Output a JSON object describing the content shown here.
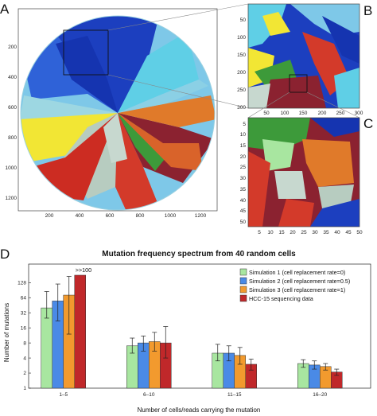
{
  "panels": {
    "A": {
      "letter": "A",
      "x_ticks": [
        "200",
        "400",
        "600",
        "800",
        "1000",
        "1200"
      ],
      "y_ticks": [
        "200",
        "400",
        "600",
        "800",
        "1000",
        "1200"
      ],
      "x_range": [
        0,
        1300
      ],
      "y_range": [
        0,
        1300
      ]
    },
    "B": {
      "letter": "B",
      "x_ticks": [
        "50",
        "100",
        "150",
        "200",
        "250",
        "300"
      ],
      "y_ticks": [
        "50",
        "100",
        "150",
        "200",
        "250",
        "300"
      ]
    },
    "C": {
      "letter": "C",
      "x_ticks": [
        "5",
        "10",
        "15",
        "20",
        "25",
        "30",
        "35",
        "40",
        "45",
        "50"
      ],
      "y_ticks": [
        "5",
        "10",
        "15",
        "20",
        "25",
        "30",
        "35",
        "40",
        "45",
        "50"
      ]
    },
    "D": {
      "letter": "D"
    }
  },
  "colors": {
    "sim1": "#a8e6a0",
    "sim2": "#4a8ae6",
    "sim3": "#f29a2e",
    "hcc": "#c0282a"
  },
  "chart_data": {
    "type": "bar",
    "title": "Mutation frequency spectrum from 40 random cells",
    "xlabel": "Number of cells/reads carrying the mutation",
    "ylabel": "Number of mutations",
    "y_scale": "log2",
    "y_ticks": [
      "1",
      "2",
      "4",
      "8",
      "16",
      "32",
      "64",
      "128"
    ],
    "ylim": [
      1,
      300
    ],
    "categories": [
      "1–5",
      "6–10",
      "11–15",
      "16–20"
    ],
    "annotation": ">>100",
    "legend_position": "top-right",
    "series": [
      {
        "name": "Simulation 1 (cell replacement rate=0)",
        "values": [
          40,
          7,
          5,
          3.1
        ],
        "err_low": [
          25,
          5,
          3.5,
          2.6
        ],
        "err_high": [
          85,
          10,
          7.5,
          3.7
        ]
      },
      {
        "name": "Simulation 2 (cell replacement rate=0.5)",
        "values": [
          55,
          8,
          5,
          2.9
        ],
        "err_low": [
          22,
          5.5,
          3.5,
          2.4
        ],
        "err_high": [
          120,
          11,
          7,
          3.5
        ]
      },
      {
        "name": "Simulation 3 (cell replacement rate=1)",
        "values": [
          72,
          8.5,
          4.5,
          2.7
        ],
        "err_low": [
          12,
          5.5,
          3,
          2.3
        ],
        "err_high": [
          170,
          13,
          6.5,
          3.1
        ]
      },
      {
        "name": "HCC-15 sequencing data",
        "values": [
          180,
          8,
          3,
          2.1
        ],
        "err_low": [
          null,
          4,
          2.3,
          1.8
        ],
        "err_high": [
          null,
          17,
          3.8,
          2.4
        ]
      }
    ]
  }
}
